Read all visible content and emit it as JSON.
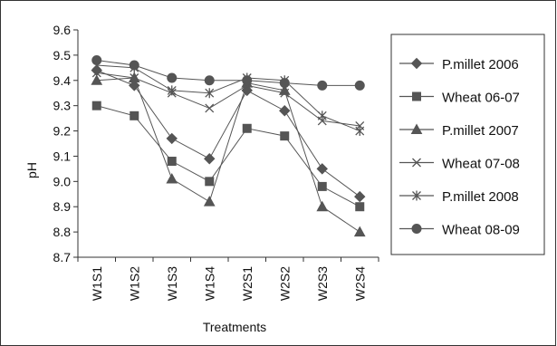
{
  "chart_data": {
    "type": "line",
    "title": "",
    "xlabel": "Treatments",
    "ylabel": "pH",
    "ylim": [
      8.7,
      9.6
    ],
    "yticks": [
      "8.7",
      "8.8",
      "8.9",
      "9.0",
      "9.1",
      "9.2",
      "9.3",
      "9.4",
      "9.5",
      "9.6"
    ],
    "grid": false,
    "legend_position": "right",
    "categories": [
      "W1S1",
      "W1S2",
      "W1S3",
      "W1S4",
      "W2S1",
      "W2S2",
      "W2S3",
      "W2S4"
    ],
    "series": [
      {
        "name": "P.millet 2006",
        "marker": "diamond",
        "color": "#555555",
        "values": [
          9.44,
          9.38,
          9.17,
          9.09,
          9.36,
          9.28,
          9.05,
          8.94
        ]
      },
      {
        "name": "Wheat 06-07",
        "marker": "square",
        "color": "#555555",
        "values": [
          9.3,
          9.26,
          9.08,
          9.0,
          9.21,
          9.18,
          8.98,
          8.9
        ]
      },
      {
        "name": "P.millet 2007",
        "marker": "triangle",
        "color": "#555555",
        "values": [
          9.4,
          9.41,
          9.01,
          8.92,
          9.39,
          9.36,
          8.9,
          8.8
        ]
      },
      {
        "name": "Wheat 07-08",
        "marker": "x",
        "color": "#555555",
        "values": [
          9.43,
          9.41,
          9.35,
          9.29,
          9.38,
          9.35,
          9.24,
          9.22
        ]
      },
      {
        "name": "P.millet 2008",
        "marker": "asterisk",
        "color": "#555555",
        "values": [
          9.46,
          9.45,
          9.36,
          9.35,
          9.41,
          9.4,
          9.26,
          9.2
        ]
      },
      {
        "name": "Wheat 08-09",
        "marker": "circle",
        "color": "#555555",
        "values": [
          9.48,
          9.46,
          9.41,
          9.4,
          9.4,
          9.39,
          9.38,
          9.38
        ]
      }
    ]
  }
}
